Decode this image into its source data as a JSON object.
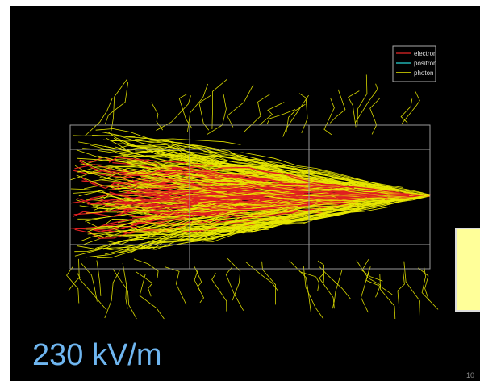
{
  "legend": {
    "items": [
      "electron",
      "positron",
      "photon"
    ]
  },
  "label": "230 kV/m",
  "footer": "10"
}
